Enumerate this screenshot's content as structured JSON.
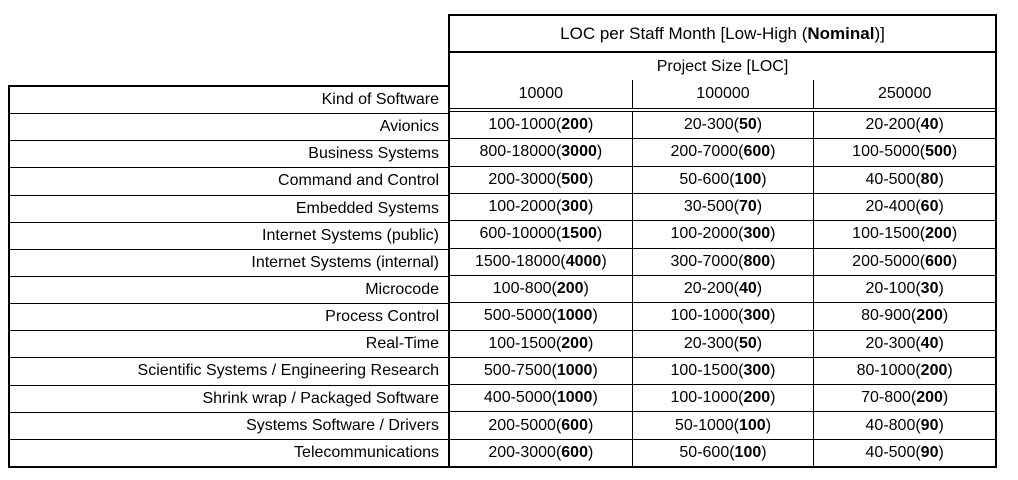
{
  "table": {
    "header1": {
      "pre": "LOC per Staff Month [Low-High (",
      "bold": "Nominal",
      "post": ")]"
    },
    "header2": "Project Size [LOC]",
    "corner_label": "Kind of Software",
    "size_columns": [
      "10000",
      "100000",
      "250000"
    ],
    "rows": [
      {
        "label": "Avionics",
        "cells": [
          {
            "pre": "100-1000(",
            "bold": "200",
            "post": ")"
          },
          {
            "pre": "20-300(",
            "bold": "50",
            "post": ")"
          },
          {
            "pre": "20-200(",
            "bold": "40",
            "post": ")"
          }
        ]
      },
      {
        "label": "Business Systems",
        "cells": [
          {
            "pre": "800-18000(",
            "bold": "3000",
            "post": ")"
          },
          {
            "pre": "200-7000(",
            "bold": "600",
            "post": ")"
          },
          {
            "pre": "100-5000(",
            "bold": "500",
            "post": ")"
          }
        ]
      },
      {
        "label": "Command and Control",
        "cells": [
          {
            "pre": "200-3000(",
            "bold": "500",
            "post": ")"
          },
          {
            "pre": "50-600(",
            "bold": "100",
            "post": ")"
          },
          {
            "pre": "40-500(",
            "bold": "80",
            "post": ")"
          }
        ]
      },
      {
        "label": "Embedded Systems",
        "cells": [
          {
            "pre": "100-2000(",
            "bold": "300",
            "post": ")"
          },
          {
            "pre": "30-500(",
            "bold": "70",
            "post": ")"
          },
          {
            "pre": "20-400(",
            "bold": "60",
            "post": ")"
          }
        ]
      },
      {
        "label": "Internet Systems (public)",
        "cells": [
          {
            "pre": "600-10000(",
            "bold": "1500",
            "post": ")"
          },
          {
            "pre": "100-2000(",
            "bold": "300",
            "post": ")"
          },
          {
            "pre": "100-1500(",
            "bold": "200",
            "post": ")"
          }
        ]
      },
      {
        "label": "Internet Systems (internal)",
        "cells": [
          {
            "pre": "1500-18000(",
            "bold": "4000",
            "post": ")"
          },
          {
            "pre": "300-7000(",
            "bold": "800",
            "post": ")"
          },
          {
            "pre": "200-5000(",
            "bold": "600",
            "post": ")"
          }
        ]
      },
      {
        "label": "Microcode",
        "cells": [
          {
            "pre": "100-800(",
            "bold": "200",
            "post": ")"
          },
          {
            "pre": "20-200(",
            "bold": "40",
            "post": ")"
          },
          {
            "pre": "20-100(",
            "bold": "30",
            "post": ")"
          }
        ]
      },
      {
        "label": "Process Control",
        "cells": [
          {
            "pre": "500-5000(",
            "bold": "1000",
            "post": ")"
          },
          {
            "pre": "100-1000(",
            "bold": "300",
            "post": ")"
          },
          {
            "pre": "80-900(",
            "bold": "200",
            "post": ")"
          }
        ]
      },
      {
        "label": "Real-Time",
        "cells": [
          {
            "pre": "100-1500(",
            "bold": "200",
            "post": ")"
          },
          {
            "pre": "20-300(",
            "bold": "50",
            "post": ")"
          },
          {
            "pre": "20-300(",
            "bold": "40",
            "post": ")"
          }
        ]
      },
      {
        "label": "Scientific Systems / Engineering Research",
        "cells": [
          {
            "pre": "500-7500(",
            "bold": "1000",
            "post": ")"
          },
          {
            "pre": "100-1500(",
            "bold": "300",
            "post": ")"
          },
          {
            "pre": "80-1000(",
            "bold": "200",
            "post": ")"
          }
        ]
      },
      {
        "label": "Shrink wrap / Packaged Software",
        "cells": [
          {
            "pre": "400-5000(",
            "bold": "1000",
            "post": ")"
          },
          {
            "pre": "100-1000(",
            "bold": "200",
            "post": ")"
          },
          {
            "pre": "70-800(",
            "bold": "200",
            "post": ")"
          }
        ]
      },
      {
        "label": "Systems Software / Drivers",
        "cells": [
          {
            "pre": "200-5000(",
            "bold": "600",
            "post": ")"
          },
          {
            "pre": "50-1000(",
            "bold": "100",
            "post": ")"
          },
          {
            "pre": "40-800(",
            "bold": "90",
            "post": ")"
          }
        ]
      },
      {
        "label": "Telecommunications",
        "cells": [
          {
            "pre": "200-3000(",
            "bold": "600",
            "post": ")"
          },
          {
            "pre": "50-600(",
            "bold": "100",
            "post": ")"
          },
          {
            "pre": "40-500(",
            "bold": "90",
            "post": ")"
          }
        ]
      }
    ]
  }
}
